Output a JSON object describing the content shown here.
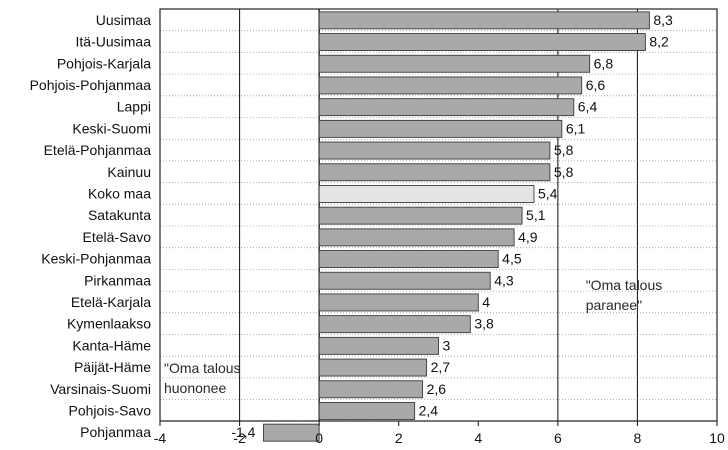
{
  "chart_data": {
    "type": "bar",
    "orientation": "horizontal",
    "categories": [
      "Uusimaa",
      "Itä-Uusimaa",
      "Pohjois-Karjala",
      "Pohjois-Pohjanmaa",
      "Lappi",
      "Keski-Suomi",
      "Etelä-Pohjanmaa",
      "Kainuu",
      "Koko maa",
      "Satakunta",
      "Etelä-Savo",
      "Keski-Pohjanmaa",
      "Pirkanmaa",
      "Etelä-Karjala",
      "Kymenlaakso",
      "Kanta-Häme",
      "Päijät-Häme",
      "Varsinais-Suomi",
      "Pohjois-Savo",
      "Pohjanmaa"
    ],
    "values": [
      8.3,
      8.2,
      6.8,
      6.6,
      6.4,
      6.1,
      5.8,
      5.8,
      5.4,
      5.1,
      4.9,
      4.5,
      4.3,
      4,
      3.8,
      3,
      2.7,
      2.6,
      2.4,
      -1.4
    ],
    "value_labels": [
      "8,3",
      "8,2",
      "6,8",
      "6,6",
      "6,4",
      "6,1",
      "5,8",
      "5,8",
      "5,4",
      "5,1",
      "4,9",
      "4,5",
      "4,3",
      "4",
      "3,8",
      "3",
      "2,7",
      "2,6",
      "2,4",
      "-1,4"
    ],
    "highlight_category": "Koko maa",
    "xlim": [
      -4,
      10
    ],
    "xticks": [
      -4,
      -2,
      0,
      2,
      4,
      6,
      8,
      10
    ],
    "xtick_labels": [
      "-4",
      "-2",
      "0",
      "2",
      "4",
      "6",
      "8",
      "10"
    ],
    "gridlines": [
      -2,
      0,
      6,
      8
    ],
    "title": "",
    "xlabel": "",
    "ylabel": "",
    "annotations": [
      {
        "lines": [
          "\"Oma talous",
          "huononee"
        ],
        "anchor": "lower-left"
      },
      {
        "lines": [
          "\"Oma talous",
          "paranee\""
        ],
        "anchor": "right"
      }
    ],
    "colors": {
      "bar": "#a9a9a9",
      "bar_highlight": "#e4e4e4",
      "bar_stroke": "#3a3a3a",
      "gridline": "#222222",
      "row_dotted": "#9a9a9a",
      "axis": "#222222"
    }
  }
}
